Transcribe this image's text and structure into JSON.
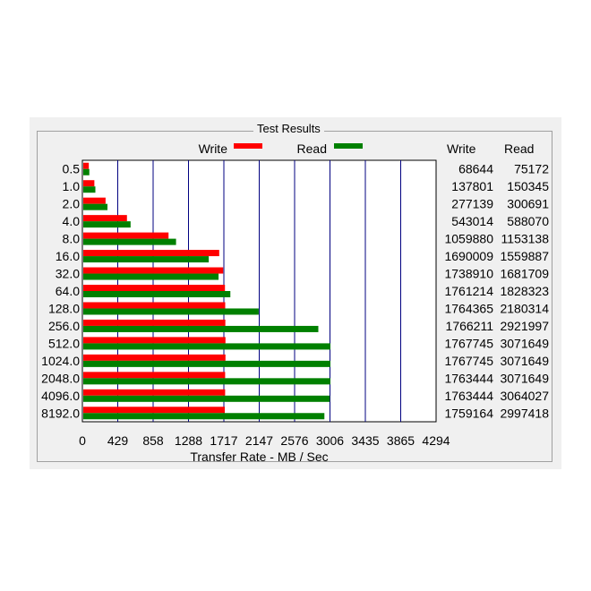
{
  "chart_data": {
    "type": "bar",
    "title": "Test Results",
    "xlabel": "Transfer Rate - MB / Sec",
    "ylabel": "",
    "x_ticks": [
      "0",
      "429",
      "858",
      "1288",
      "1717",
      "2147",
      "2576",
      "3006",
      "3435",
      "3865",
      "4294"
    ],
    "xlim": [
      0,
      4294
    ],
    "categories": [
      "0.5",
      "1.0",
      "2.0",
      "4.0",
      "8.0",
      "16.0",
      "32.0",
      "64.0",
      "128.0",
      "256.0",
      "512.0",
      "1024.0",
      "2048.0",
      "4096.0",
      "8192.0"
    ],
    "series": [
      {
        "name": "Write",
        "color": "#ff0000",
        "values": [
          68644,
          137801,
          277139,
          543014,
          1059880,
          1690009,
          1738910,
          1761214,
          1764365,
          1766211,
          1767745,
          1767745,
          1763444,
          1763444,
          1759164
        ],
        "display": [
          "68644",
          "137801",
          "277139",
          "543014",
          "1059880",
          "1690009",
          "1738910",
          "1761214",
          "1764365",
          "1766211",
          "1767745",
          "1767745",
          "1763444",
          "1763444",
          "1759164"
        ]
      },
      {
        "name": "Read",
        "color": "#008000",
        "values": [
          75172,
          150345,
          300691,
          588070,
          1153138,
          1559887,
          1681709,
          1828323,
          2180314,
          2921997,
          3071649,
          3071649,
          3071649,
          3064027,
          2997418
        ],
        "display": [
          "75172",
          "150345",
          "300691",
          "588070",
          "1153138",
          "1559887",
          "1681709",
          "1828323",
          "2180314",
          "2921997",
          "3071649",
          "3071649",
          "3071649",
          "3064027",
          "2997418"
        ]
      }
    ],
    "table_headers": [
      "Write",
      "Read"
    ],
    "grid": true,
    "gridline_color": "#000080",
    "legend_position": "top-center"
  }
}
